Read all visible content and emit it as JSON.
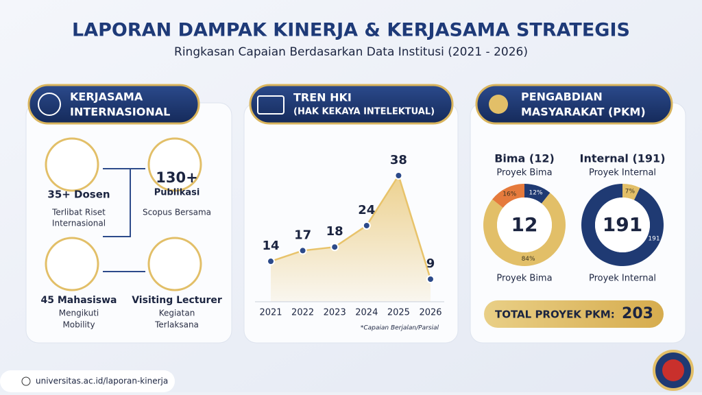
{
  "header": {
    "title": "LAPORAN DAMPAK KINERJA & KERJASAMA STRATEGIS",
    "subtitle": "Ringkasan Capaian Berdasarkan Data Institusi (2021 - 2026)"
  },
  "kerjasama": {
    "title_lines": [
      "KERJASAMA",
      "INTERNASIONAL"
    ],
    "dosen": {
      "value": "35+ Dosen",
      "lines": [
        "Terlibat Riset",
        "Internasional"
      ]
    },
    "publikasi": {
      "value": "130+",
      "unit": "Publikasi",
      "lines": [
        "Scopus Bersama"
      ]
    },
    "mahasiswa": {
      "value": "45 Mahasiswa",
      "lines": [
        "Mengikuti",
        "Mobility"
      ]
    },
    "lecturer": {
      "value": "Visiting Lecturer",
      "lines": [
        "Kegiatan",
        "Terlaksana"
      ]
    }
  },
  "chart_data": [
    {
      "type": "line",
      "title": "TREN HKI",
      "subtitle": "(HAK KEKAYA INTELEKTUAL)",
      "categories": [
        "2021",
        "2022",
        "2023",
        "2024",
        "2025",
        "2026"
      ],
      "values": [
        14,
        17,
        18,
        24,
        38,
        9
      ],
      "color": "#2c4a8a",
      "fill": "#e8c36a",
      "note": "*Capaian Berjalan/Parsial"
    },
    {
      "type": "donut",
      "section_title": [
        "PENGABDIAN",
        "MASYARAKAT (PKM)"
      ],
      "title": "Bima (12)",
      "subtitle": "Proyek Bima",
      "center": "12",
      "caption": "Proyek Bima",
      "values": [
        12,
        84,
        16
      ],
      "value_labels": [
        "12%",
        "84%",
        "16%"
      ],
      "colors": [
        "#1f3a73",
        "#e2bf68",
        "#e57a3c"
      ]
    },
    {
      "type": "donut",
      "title": "Internal (191)",
      "subtitle": "Proyek Internal",
      "center": "191",
      "caption": "Proyek Internal",
      "values": [
        7,
        93
      ],
      "value_labels": [
        "7%",
        null
      ],
      "annotation": "191",
      "colors": [
        "#e2bf68",
        "#1f3a73"
      ]
    }
  ],
  "total": {
    "label": "TOTAL PROYEK PKM:",
    "value": "203"
  },
  "footer": {
    "url": "universitas.ac.id/laporan-kinerja"
  }
}
